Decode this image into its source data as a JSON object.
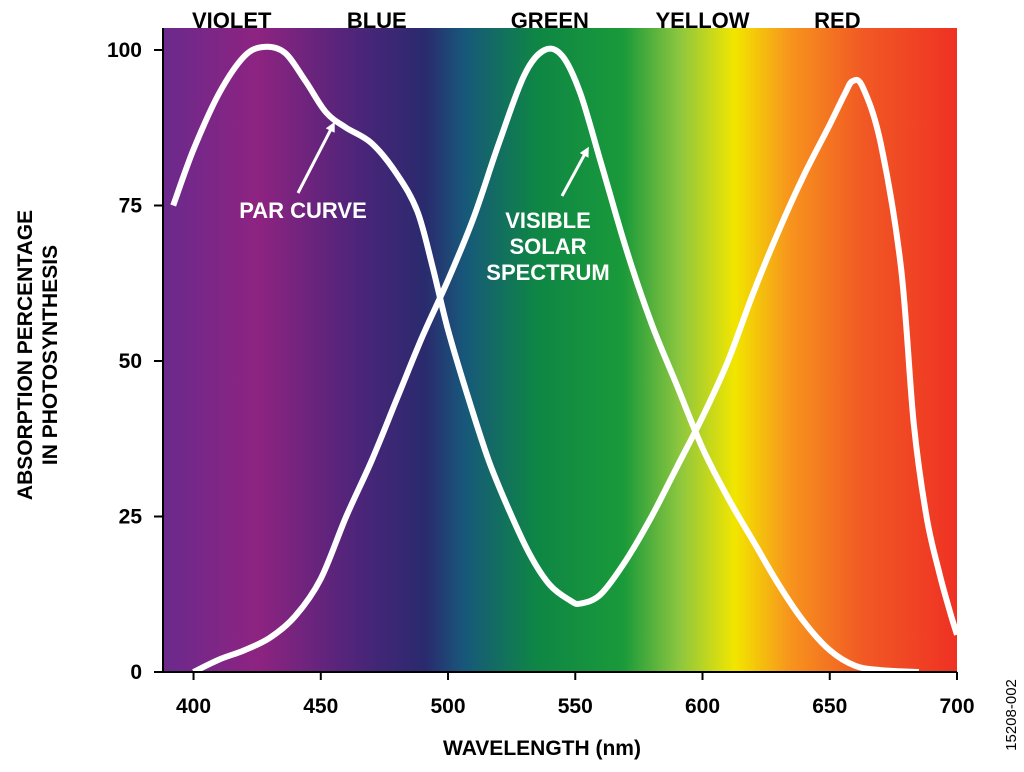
{
  "chart_data": {
    "type": "line",
    "xlabel": "WAVELENGTH (nm)",
    "ylabel": [
      "ABSORPTION PERCENTAGE",
      "IN PHOTOSYNTHESIS"
    ],
    "xlim": [
      388,
      700
    ],
    "ylim": [
      0,
      100
    ],
    "x_ticks": [
      400,
      450,
      500,
      550,
      600,
      650,
      700
    ],
    "y_ticks": [
      0,
      25,
      50,
      75,
      100
    ],
    "grid": false,
    "legend": "none",
    "background": "visible color spectrum gradient (violet to red)",
    "bands": [
      {
        "label": "VIOLET",
        "x": 415
      },
      {
        "label": "BLUE",
        "x": 472
      },
      {
        "label": "GREEN",
        "x": 540
      },
      {
        "label": "YELLOW",
        "x": 600
      },
      {
        "label": "RED",
        "x": 653
      }
    ],
    "series": [
      {
        "points": [
          [
            392,
            75
          ],
          [
            400,
            84
          ],
          [
            410,
            93
          ],
          [
            420,
            99
          ],
          [
            428,
            100.5
          ],
          [
            436,
            99.5
          ],
          [
            444,
            95
          ],
          [
            452,
            90
          ],
          [
            460,
            87.5
          ],
          [
            470,
            85
          ],
          [
            480,
            80
          ],
          [
            488,
            74
          ],
          [
            494,
            65
          ],
          [
            500,
            55
          ],
          [
            508,
            44
          ],
          [
            516,
            34
          ],
          [
            524,
            26
          ],
          [
            532,
            19
          ],
          [
            540,
            14
          ],
          [
            548,
            11.5
          ],
          [
            552,
            11
          ],
          [
            560,
            12.5
          ],
          [
            570,
            18
          ],
          [
            580,
            25
          ],
          [
            590,
            33
          ],
          [
            600,
            41
          ],
          [
            610,
            50
          ],
          [
            620,
            61
          ],
          [
            630,
            71
          ],
          [
            640,
            80
          ],
          [
            650,
            88
          ],
          [
            656,
            93
          ],
          [
            659,
            95
          ],
          [
            663,
            94
          ],
          [
            670,
            85
          ],
          [
            678,
            65
          ],
          [
            683,
            40
          ],
          [
            688,
            25
          ],
          [
            693,
            16
          ],
          [
            697,
            10
          ],
          [
            700,
            6
          ]
        ]
      },
      {
        "points": [
          [
            400,
            0
          ],
          [
            410,
            2
          ],
          [
            420,
            3.5
          ],
          [
            430,
            5.5
          ],
          [
            440,
            9
          ],
          [
            450,
            15
          ],
          [
            460,
            25
          ],
          [
            470,
            34
          ],
          [
            480,
            44
          ],
          [
            490,
            54
          ],
          [
            500,
            63
          ],
          [
            510,
            73
          ],
          [
            520,
            85
          ],
          [
            530,
            96
          ],
          [
            538,
            100
          ],
          [
            545,
            99
          ],
          [
            552,
            93
          ],
          [
            560,
            82
          ],
          [
            570,
            68
          ],
          [
            580,
            56
          ],
          [
            590,
            46
          ],
          [
            600,
            36
          ],
          [
            610,
            28
          ],
          [
            620,
            21
          ],
          [
            630,
            14
          ],
          [
            640,
            8
          ],
          [
            650,
            3.5
          ],
          [
            660,
            1
          ],
          [
            670,
            0.3
          ],
          [
            685,
            0
          ]
        ]
      }
    ],
    "annotations": [
      {
        "label": "PAR CURVE",
        "target": [
          455,
          90
        ]
      },
      {
        "label": [
          "VISIBLE",
          "SOLAR",
          "SPECTRUM"
        ],
        "target": [
          554,
          86
        ]
      }
    ]
  },
  "figure_id": "15208-002",
  "colors": {
    "spectrum_stops": [
      "#6a2a8c",
      "#8e2381",
      "#4a2579",
      "#2a2a6e",
      "#17587a",
      "#0e8645",
      "#1a9a3a",
      "#8cc63f",
      "#f2e600",
      "#f7941d",
      "#f15a24",
      "#ef3124"
    ],
    "curve": "#ffffff"
  }
}
